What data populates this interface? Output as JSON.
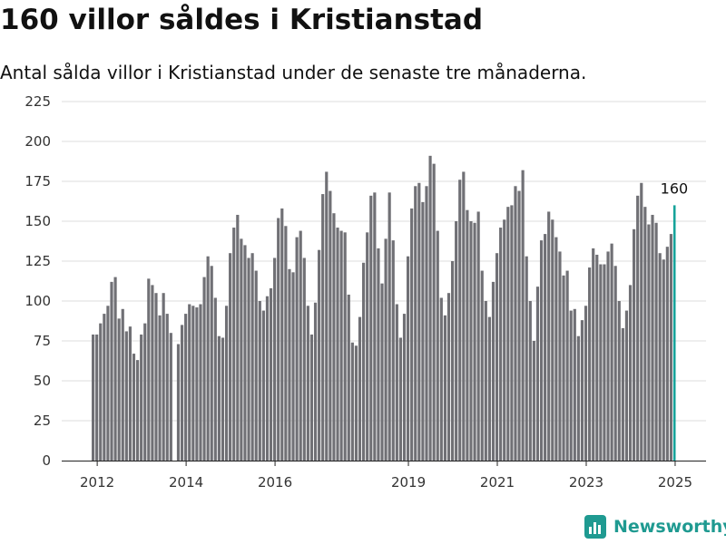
{
  "header": {
    "title": "160 villor såldes i Kristianstad",
    "subtitle": "Antal sålda villor i Kristianstad under de senaste tre månaderna."
  },
  "brand": {
    "name": "Newsworthy",
    "logo_icon": "bar-chart-icon",
    "color": "#1f9a91"
  },
  "colors": {
    "bar": "#707075",
    "highlight": "#16a39a"
  },
  "chart_data": {
    "type": "bar",
    "title": "",
    "xlabel": "",
    "ylabel": "",
    "ylim": [
      0,
      225
    ],
    "yticks": [
      "0",
      "25",
      "50",
      "75",
      "100",
      "125",
      "150",
      "175",
      "200",
      "225"
    ],
    "xticks": [
      {
        "label": "2012",
        "year": 2012
      },
      {
        "label": "2014",
        "year": 2014
      },
      {
        "label": "2016",
        "year": 2016
      },
      {
        "label": "2019",
        "year": 2019
      },
      {
        "label": "2021",
        "year": 2021
      },
      {
        "label": "2023",
        "year": 2023
      },
      {
        "label": "2025",
        "year": 2025
      }
    ],
    "grid": true,
    "legend": "none",
    "start": "2011-12",
    "end": "2025-03",
    "highlight_label": "160",
    "values": [
      79,
      79,
      86,
      92,
      97,
      112,
      115,
      89,
      95,
      81,
      84,
      67,
      63,
      79,
      86,
      114,
      110,
      105,
      91,
      105,
      92,
      80,
      0,
      73,
      85,
      92,
      98,
      97,
      96,
      98,
      115,
      128,
      122,
      102,
      78,
      77,
      97,
      130,
      146,
      154,
      139,
      135,
      127,
      130,
      119,
      100,
      94,
      103,
      108,
      127,
      152,
      158,
      147,
      120,
      118,
      140,
      144,
      127,
      97,
      79,
      99,
      132,
      167,
      181,
      169,
      155,
      146,
      144,
      143,
      104,
      74,
      72,
      90,
      124,
      143,
      166,
      168,
      133,
      111,
      139,
      168,
      138,
      98,
      77,
      92,
      128,
      158,
      172,
      174,
      162,
      172,
      191,
      186,
      144,
      102,
      91,
      105,
      125,
      150,
      176,
      181,
      157,
      150,
      149,
      156,
      119,
      100,
      90,
      112,
      130,
      146,
      151,
      159,
      160,
      172,
      169,
      182,
      128,
      100,
      75,
      109,
      138,
      142,
      156,
      151,
      140,
      131,
      116,
      119,
      94,
      95,
      78,
      88,
      97,
      121,
      133,
      129,
      123,
      123,
      131,
      136,
      122,
      100,
      83,
      94,
      110,
      145,
      166,
      174,
      159,
      148,
      154,
      149,
      130,
      126,
      134,
      142,
      160
    ]
  }
}
